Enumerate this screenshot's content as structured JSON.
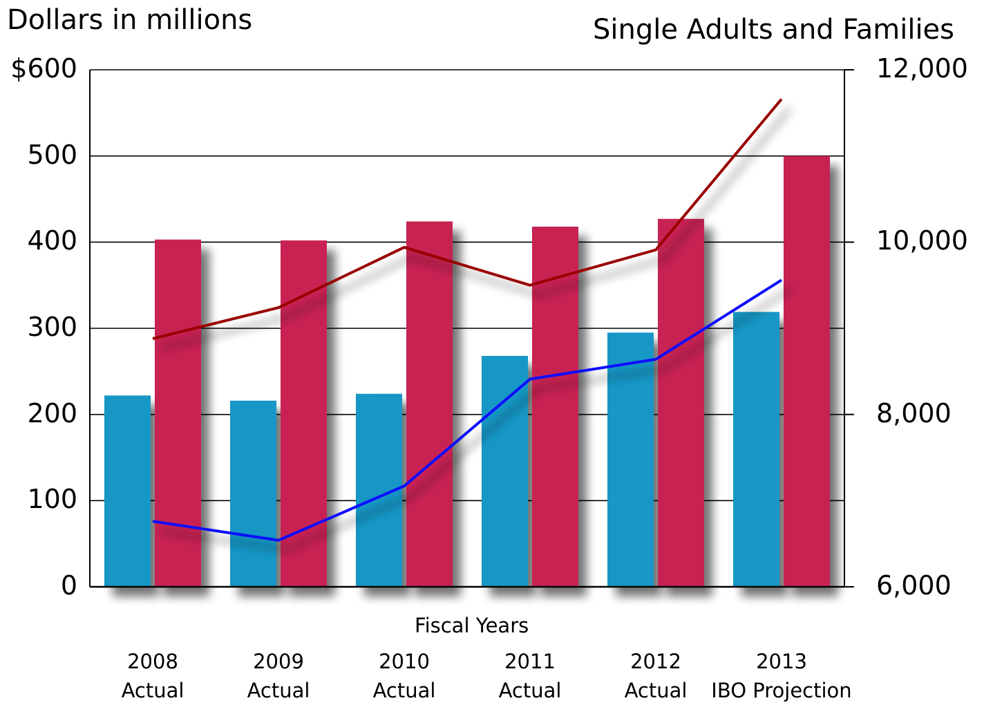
{
  "chart_data": {
    "type": "bar",
    "left_axis": {
      "label": "Dollars in millions",
      "ticks": [
        "$600",
        "500",
        "400",
        "300",
        "200",
        "100",
        "0"
      ],
      "range": [
        0,
        600
      ]
    },
    "right_axis": {
      "label": "Single Adults and Families",
      "ticks": [
        "12,000",
        "10,000",
        "8,000",
        "6,000"
      ],
      "range": [
        6000,
        12000
      ]
    },
    "xlabel": "Fiscal Years",
    "categories": [
      {
        "year": "2008",
        "note": "Actual"
      },
      {
        "year": "2009",
        "note": "Actual"
      },
      {
        "year": "2010",
        "note": "Actual"
      },
      {
        "year": "2011",
        "note": "Actual"
      },
      {
        "year": "2012",
        "note": "Actual"
      },
      {
        "year": "2013",
        "note": "IBO Projection"
      }
    ],
    "bar_series": [
      {
        "axis": "left",
        "color": "#1797c6",
        "values": [
          222,
          216,
          224,
          268,
          295,
          319
        ]
      },
      {
        "axis": "left",
        "color": "#c82353",
        "values": [
          403,
          402,
          424,
          418,
          427,
          500
        ]
      }
    ],
    "line_series": [
      {
        "axis": "right",
        "color": "#990000",
        "values": [
          8880,
          9240,
          9940,
          9500,
          9910,
          11660
        ]
      },
      {
        "axis": "right",
        "color": "#0a0aff",
        "values": [
          6760,
          6540,
          7170,
          8410,
          8640,
          9560
        ]
      }
    ],
    "grid": true
  }
}
